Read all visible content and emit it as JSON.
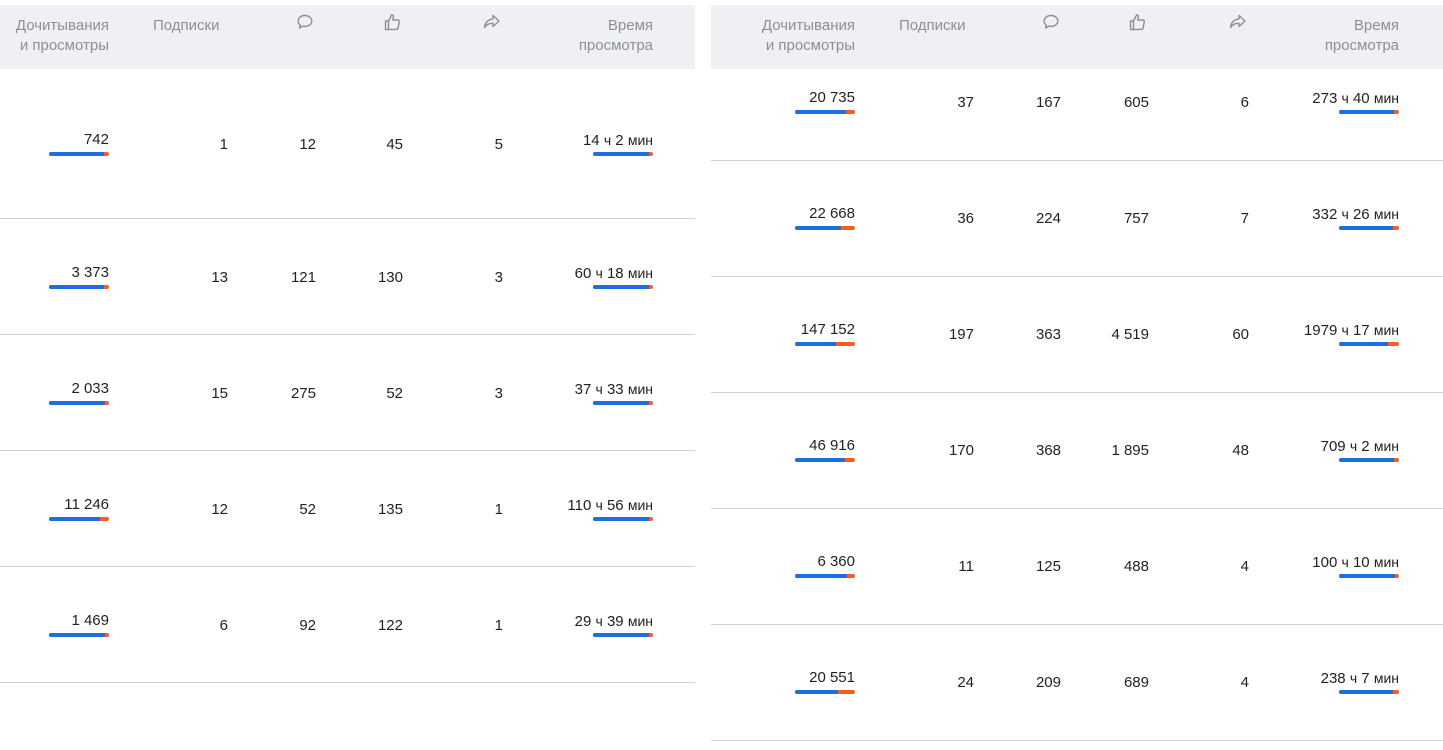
{
  "columns": {
    "reads": [
      "Дочитывания",
      "и просмотры"
    ],
    "subs": "Подписки",
    "comments_icon": "comment-icon",
    "likes_icon": "thumbs-up-icon",
    "shares_icon": "share-icon",
    "time": [
      "Время",
      "просмотра"
    ]
  },
  "units": {
    "h": "ч",
    "m": "мин"
  },
  "left_rows": [
    {
      "reads": "742",
      "reads_ratio": 0.92,
      "subs": "1",
      "comments": "12",
      "likes": "45",
      "shares": "5",
      "time_h": "14",
      "time_m": "2",
      "time_ratio": 0.93
    },
    {
      "reads": "3 373",
      "reads_ratio": 0.92,
      "subs": "13",
      "comments": "121",
      "likes": "130",
      "shares": "3",
      "time_h": "60",
      "time_m": "18",
      "time_ratio": 0.93
    },
    {
      "reads": "2 033",
      "reads_ratio": 0.93,
      "subs": "15",
      "comments": "275",
      "likes": "52",
      "shares": "3",
      "time_h": "37",
      "time_m": "33",
      "time_ratio": 0.93
    },
    {
      "reads": "11 246",
      "reads_ratio": 0.85,
      "subs": "12",
      "comments": "52",
      "likes": "135",
      "shares": "1",
      "time_h": "110",
      "time_m": "56",
      "time_ratio": 0.93
    },
    {
      "reads": "1 469",
      "reads_ratio": 0.93,
      "subs": "6",
      "comments": "92",
      "likes": "122",
      "shares": "1",
      "time_h": "29",
      "time_m": "39",
      "time_ratio": 0.93
    }
  ],
  "right_rows": [
    {
      "reads": "20 735",
      "reads_ratio": 0.85,
      "subs": "37",
      "comments": "167",
      "likes": "605",
      "shares": "6",
      "time_h": "273",
      "time_m": "40",
      "time_ratio": 0.92
    },
    {
      "reads": "22 668",
      "reads_ratio": 0.77,
      "subs": "36",
      "comments": "224",
      "likes": "757",
      "shares": "7",
      "time_h": "332",
      "time_m": "26",
      "time_ratio": 0.9
    },
    {
      "reads": "147 152",
      "reads_ratio": 0.68,
      "subs": "197",
      "comments": "363",
      "likes": "4 519",
      "shares": "60",
      "time_h": "1979",
      "time_m": "17",
      "time_ratio": 0.82
    },
    {
      "reads": "46 916",
      "reads_ratio": 0.83,
      "subs": "170",
      "comments": "368",
      "likes": "1 895",
      "shares": "48",
      "time_h": "709",
      "time_m": "2",
      "time_ratio": 0.92
    },
    {
      "reads": "6 360",
      "reads_ratio": 0.87,
      "subs": "11",
      "comments": "125",
      "likes": "488",
      "shares": "4",
      "time_h": "100",
      "time_m": "10",
      "time_ratio": 0.93
    },
    {
      "reads": "20 551",
      "reads_ratio": 0.71,
      "subs": "24",
      "comments": "209",
      "likes": "689",
      "shares": "4",
      "time_h": "238",
      "time_m": "7",
      "time_ratio": 0.9
    }
  ],
  "colors": {
    "bar_primary": "#1b6fe0",
    "bar_secondary": "#ff5a1f",
    "header_bg": "#eef0f3",
    "header_text": "#8c9096",
    "divider": "#cfd2d6"
  }
}
